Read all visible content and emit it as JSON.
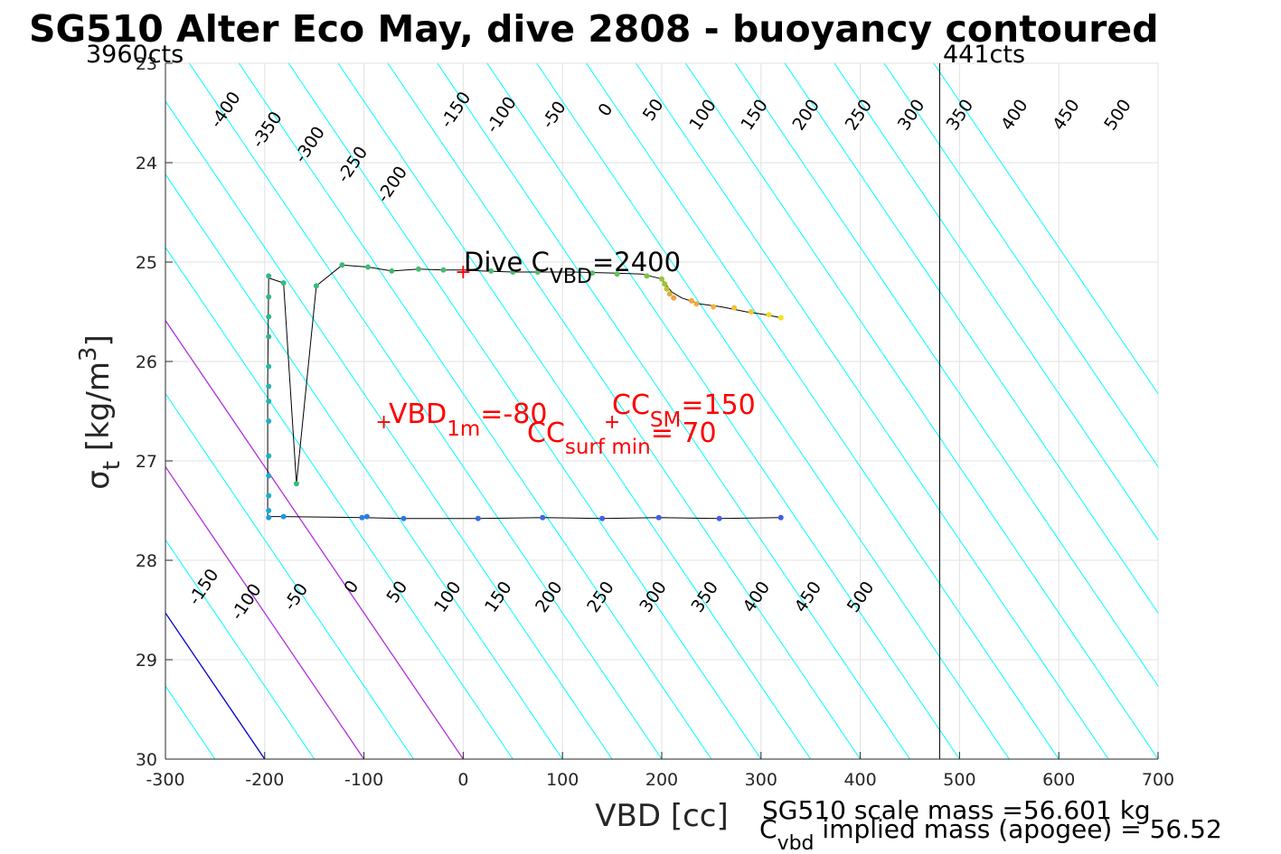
{
  "chart_data": {
    "type": "line",
    "title": "SG510 Alter Eco May, dive 2808 - buoyancy contoured",
    "xlabel": "VBD [cc]",
    "ylabel": {
      "base": "σ",
      "sub": "t",
      "text": " [kg/m",
      "sup": "3",
      "close": "]"
    },
    "xlim": [
      -300,
      700
    ],
    "ylim": [
      23,
      30
    ],
    "y_reversed": true,
    "grid": true,
    "xticks": [
      -300,
      -200,
      -100,
      0,
      100,
      200,
      300,
      400,
      500,
      600,
      700
    ],
    "yticks": [
      23,
      24,
      25,
      26,
      27,
      28,
      29,
      30
    ],
    "counts_labels": {
      "left": "3960cts",
      "right": "441cts"
    },
    "counts_line_x": 480,
    "contours": {
      "levels": [
        -400,
        -350,
        -300,
        -250,
        -200,
        -150,
        -100,
        -50,
        0,
        50,
        100,
        150,
        200,
        250,
        300,
        350,
        400,
        450,
        500
      ],
      "line_x_at_30": [
        -500,
        -450,
        -400,
        -350,
        -300,
        -250,
        -200,
        -150,
        -100,
        -50,
        0,
        50,
        100,
        150,
        200,
        250,
        300,
        350,
        400,
        450,
        500,
        550,
        600,
        650,
        700,
        750,
        800,
        850,
        900,
        950
      ],
      "slope_cc_per_sigma": 68,
      "color": "#00ffff",
      "highlight": [
        {
          "x_at_30": -200,
          "color": "#0000cd"
        },
        {
          "x_at_30": -100,
          "color": "#b030e0"
        },
        {
          "x_at_30": 0,
          "color": "#b030e0"
        }
      ],
      "top_labels": [
        {
          "text": "-400",
          "x": -235,
          "y": 23.5
        },
        {
          "text": "-350",
          "x": -193,
          "y": 23.7
        },
        {
          "text": "-300",
          "x": -150,
          "y": 23.85
        },
        {
          "text": "-250",
          "x": -107,
          "y": 24.05
        },
        {
          "text": "-200",
          "x": -67,
          "y": 24.25
        },
        {
          "text": "-150",
          "x": -3,
          "y": 23.5
        },
        {
          "text": "-100",
          "x": 43,
          "y": 23.55
        },
        {
          "text": "-50",
          "x": 96,
          "y": 23.55
        },
        {
          "text": "0",
          "x": 148,
          "y": 23.5
        },
        {
          "text": "50",
          "x": 196,
          "y": 23.5
        },
        {
          "text": "100",
          "x": 246,
          "y": 23.55
        },
        {
          "text": "150",
          "x": 298,
          "y": 23.55
        },
        {
          "text": "200",
          "x": 350,
          "y": 23.55
        },
        {
          "text": "250",
          "x": 403,
          "y": 23.55
        },
        {
          "text": "300",
          "x": 456,
          "y": 23.55
        },
        {
          "text": "350",
          "x": 505,
          "y": 23.55
        },
        {
          "text": "400",
          "x": 560,
          "y": 23.55
        },
        {
          "text": "450",
          "x": 612,
          "y": 23.55
        },
        {
          "text": "500",
          "x": 664,
          "y": 23.55
        }
      ],
      "bottom_labels": [
        {
          "text": "-150",
          "x": -257,
          "y": 28.3
        },
        {
          "text": "-100",
          "x": -214,
          "y": 28.45
        },
        {
          "text": "-50",
          "x": -164,
          "y": 28.4
        },
        {
          "text": "0",
          "x": -108,
          "y": 28.3
        },
        {
          "text": "50",
          "x": -62,
          "y": 28.35
        },
        {
          "text": "100",
          "x": -11,
          "y": 28.4
        },
        {
          "text": "150",
          "x": 40,
          "y": 28.4
        },
        {
          "text": "200",
          "x": 91,
          "y": 28.4
        },
        {
          "text": "250",
          "x": 143,
          "y": 28.4
        },
        {
          "text": "300",
          "x": 196,
          "y": 28.4
        },
        {
          "text": "350",
          "x": 248,
          "y": 28.4
        },
        {
          "text": "400",
          "x": 300,
          "y": 28.4
        },
        {
          "text": "450",
          "x": 352,
          "y": 28.4
        },
        {
          "text": "500",
          "x": 405,
          "y": 28.4
        }
      ]
    },
    "series": [
      {
        "type": "profile-line",
        "color": "#000000",
        "points": [
          [
            320,
            25.56
          ],
          [
            305,
            25.53
          ],
          [
            285,
            25.5
          ],
          [
            260,
            25.45
          ],
          [
            238,
            25.42
          ],
          [
            220,
            25.36
          ],
          [
            210,
            25.3
          ],
          [
            200,
            25.17
          ],
          [
            180,
            25.12
          ],
          [
            150,
            25.11
          ],
          [
            110,
            25.1
          ],
          [
            80,
            25.1
          ],
          [
            50,
            25.1
          ],
          [
            20,
            25.09
          ],
          [
            0,
            25.08
          ],
          [
            -20,
            25.08
          ],
          [
            -45,
            25.07
          ],
          [
            -72,
            25.09
          ],
          [
            -96,
            25.05
          ],
          [
            -122,
            25.03
          ],
          [
            -148,
            25.24
          ],
          [
            -168,
            27.23
          ],
          [
            -181,
            25.21
          ],
          [
            -196,
            25.16
          ],
          [
            -197,
            26.2
          ],
          [
            -197,
            27.56
          ],
          [
            -181,
            27.56
          ],
          [
            -102,
            27.57
          ],
          [
            -60,
            27.58
          ],
          [
            15,
            27.58
          ],
          [
            80,
            27.57
          ],
          [
            140,
            27.58
          ],
          [
            197,
            27.57
          ],
          [
            258,
            27.58
          ],
          [
            320,
            27.57
          ]
        ]
      },
      {
        "type": "scatter",
        "points": [
          {
            "x": 320,
            "y": 25.56,
            "color": "#f5e11c"
          },
          {
            "x": 308,
            "y": 25.53,
            "color": "#f2dd1e"
          },
          {
            "x": 290,
            "y": 25.5,
            "color": "#f4c630"
          },
          {
            "x": 273,
            "y": 25.46,
            "color": "#f6c132"
          },
          {
            "x": 252,
            "y": 25.45,
            "color": "#f7b03b"
          },
          {
            "x": 235,
            "y": 25.42,
            "color": "#f6a640"
          },
          {
            "x": 230,
            "y": 25.39,
            "color": "#f5a440"
          },
          {
            "x": 212,
            "y": 25.36,
            "color": "#f0a43c"
          },
          {
            "x": 208,
            "y": 25.32,
            "color": "#d5b235"
          },
          {
            "x": 205,
            "y": 25.27,
            "color": "#bdc22d"
          },
          {
            "x": 203,
            "y": 25.22,
            "color": "#a4c430"
          },
          {
            "x": 200,
            "y": 25.17,
            "color": "#9bc33a"
          },
          {
            "x": 185,
            "y": 25.14,
            "color": "#7fc44a"
          },
          {
            "x": 155,
            "y": 25.12,
            "color": "#65c05a"
          },
          {
            "x": 130,
            "y": 25.11,
            "color": "#59bf62"
          },
          {
            "x": 75,
            "y": 25.1,
            "color": "#4fbe68"
          },
          {
            "x": 50,
            "y": 25.1,
            "color": "#4abe6b"
          },
          {
            "x": 28,
            "y": 25.09,
            "color": "#46bd6e"
          },
          {
            "x": -20,
            "y": 25.08,
            "color": "#43bd70"
          },
          {
            "x": -45,
            "y": 25.07,
            "color": "#41bd72"
          },
          {
            "x": -72,
            "y": 25.09,
            "color": "#3fbc74"
          },
          {
            "x": -96,
            "y": 25.05,
            "color": "#3dbc76"
          },
          {
            "x": -122,
            "y": 25.03,
            "color": "#3bbb78"
          },
          {
            "x": -148,
            "y": 25.24,
            "color": "#39bb7a"
          },
          {
            "x": -168,
            "y": 27.23,
            "color": "#37ba7d"
          },
          {
            "x": -181,
            "y": 25.21,
            "color": "#36ba7f"
          },
          {
            "x": -196,
            "y": 25.14,
            "color": "#35b982"
          },
          {
            "x": -196,
            "y": 25.35,
            "color": "#32b886"
          },
          {
            "x": -196,
            "y": 25.55,
            "color": "#30b78a"
          },
          {
            "x": -196,
            "y": 25.75,
            "color": "#2eb690"
          },
          {
            "x": -196,
            "y": 26.05,
            "color": "#28b5a3"
          },
          {
            "x": -196,
            "y": 26.25,
            "color": "#24b4ad"
          },
          {
            "x": -196,
            "y": 26.4,
            "color": "#20b3b5"
          },
          {
            "x": -196,
            "y": 26.6,
            "color": "#1db2bd"
          },
          {
            "x": -196,
            "y": 26.95,
            "color": "#1ab1c3"
          },
          {
            "x": -196,
            "y": 27.15,
            "color": "#19b0c8"
          },
          {
            "x": -196,
            "y": 27.35,
            "color": "#18afcc"
          },
          {
            "x": -196,
            "y": 27.5,
            "color": "#1aa9d3"
          },
          {
            "x": -196,
            "y": 27.57,
            "color": "#1c9fdb"
          },
          {
            "x": -181,
            "y": 27.56,
            "color": "#2096df"
          },
          {
            "x": -102,
            "y": 27.57,
            "color": "#2b7fe4"
          },
          {
            "x": -97,
            "y": 27.56,
            "color": "#2f7ae5"
          },
          {
            "x": -60,
            "y": 27.58,
            "color": "#3472e6"
          },
          {
            "x": 15,
            "y": 27.58,
            "color": "#3a6ae6"
          },
          {
            "x": 80,
            "y": 27.57,
            "color": "#3d66e6"
          },
          {
            "x": 140,
            "y": 27.58,
            "color": "#4062e6"
          },
          {
            "x": 197,
            "y": 27.57,
            "color": "#425fe6"
          },
          {
            "x": 258,
            "y": 27.58,
            "color": "#445de6"
          },
          {
            "x": 320,
            "y": 27.57,
            "color": "#465ae6"
          }
        ]
      }
    ],
    "markers": [
      {
        "x": 0,
        "y": 25.09,
        "color": "#ff0000"
      },
      {
        "x": -80,
        "y": 26.6,
        "color": "#ff0000"
      },
      {
        "x": 150,
        "y": 26.6,
        "color": "#ff0000"
      }
    ],
    "annotations": {
      "dive_cvbd": {
        "prefix": "Dive C",
        "sub": "VBD",
        "suffix": "=2400"
      },
      "vbd_1m": {
        "prefix": "VBD",
        "sub": "1m",
        "suffix": "=-80"
      },
      "cc_sm": {
        "prefix": "CC",
        "sub": "SM",
        "suffix": "=150"
      },
      "cc_surf_min": {
        "prefix": "CC",
        "sub": "surf min",
        "suffix": "= 70"
      },
      "scale_mass": "SG510 scale mass =56.601 kg",
      "implied_mass": {
        "prefix": "C",
        "sub": "vbd",
        "suffix": " implied mass (apogee) = 56.52"
      }
    }
  }
}
